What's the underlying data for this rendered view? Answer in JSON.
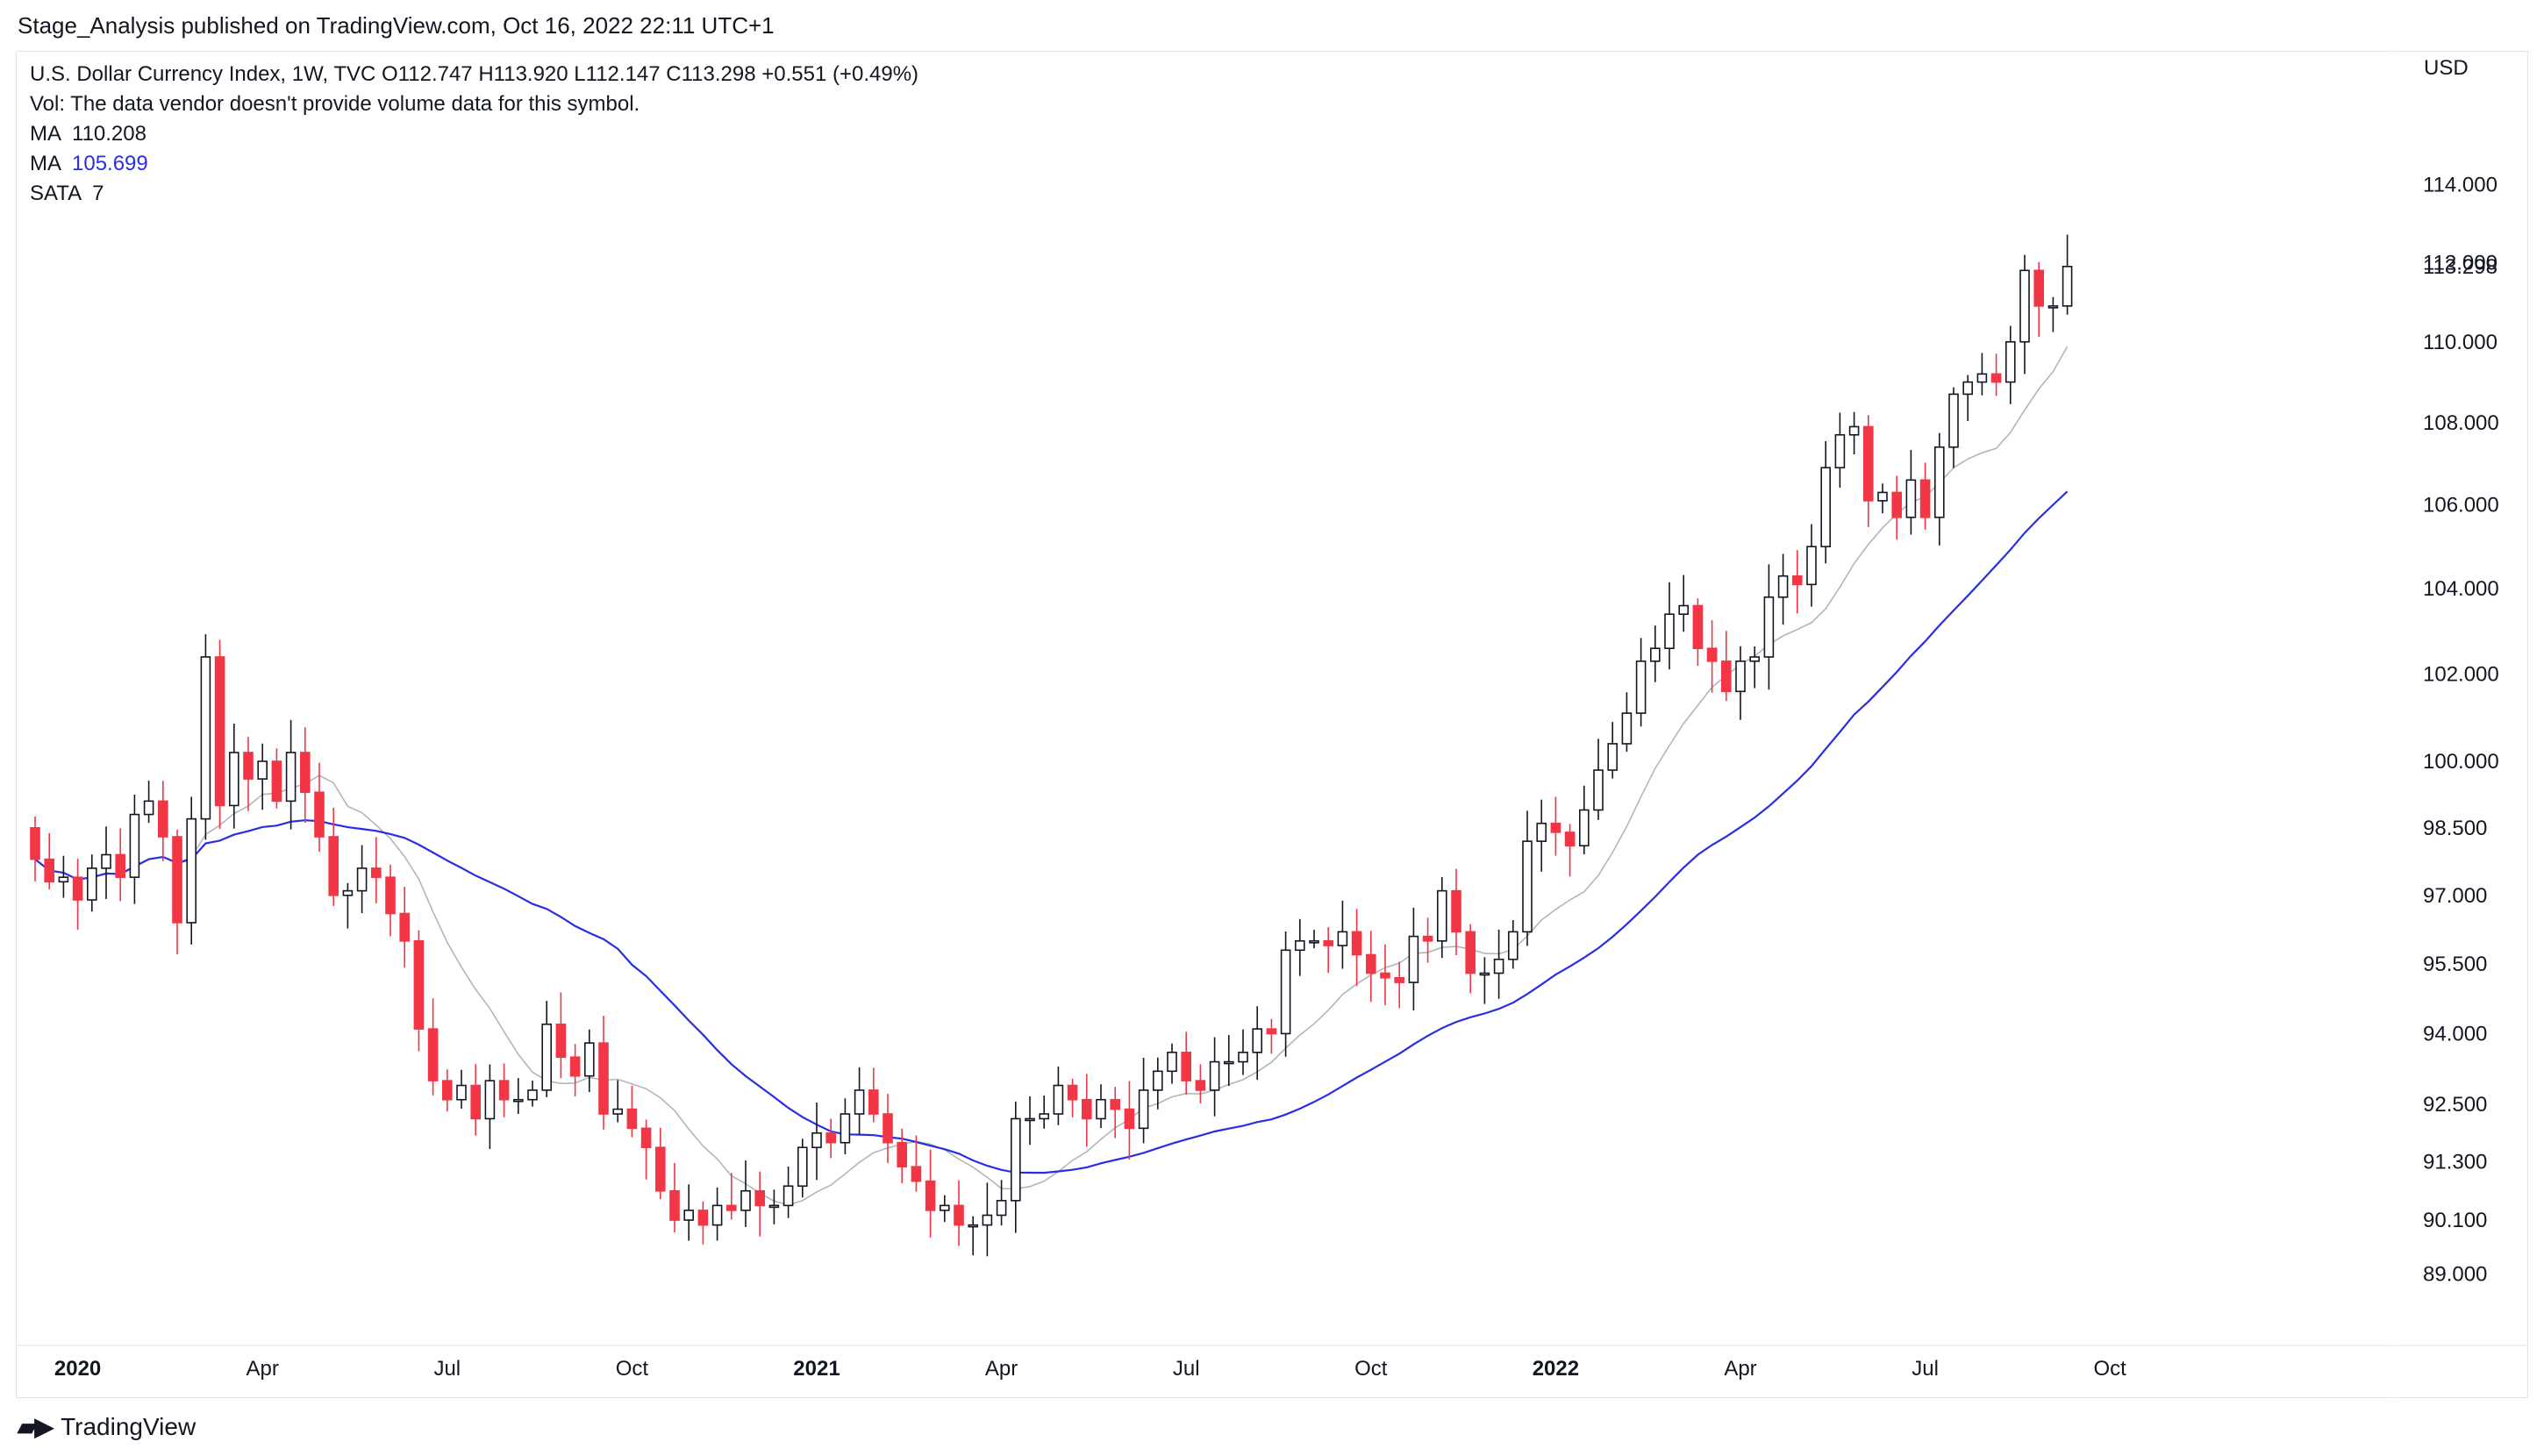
{
  "header": {
    "publisher_line": "Stage_Analysis published on TradingView.com, Oct 16, 2022 22:11 UTC+1"
  },
  "legend": {
    "symbol_line": "U.S. Dollar Currency Index, 1W, TVC  O112.747  H113.920  L112.147  C113.298  +0.551 (+0.49%)",
    "vol_line": "Vol: The data vendor doesn't provide volume data for this symbol.",
    "ma1_label": "MA",
    "ma1_value": "110.208",
    "ma2_label": "MA",
    "ma2_value": "105.699",
    "sata_label": "SATA",
    "sata_value": "7"
  },
  "axis": {
    "currency": "USD",
    "last_price": "113.298"
  },
  "brand": {
    "name": "TradingView"
  },
  "colors": {
    "up": "#131722",
    "down": "#f23645",
    "ma_fast": "#b2b5be",
    "ma_slow": "#2a2ee3"
  },
  "chart_data": {
    "type": "candlestick",
    "interval": "1W",
    "ylim": [
      88.2,
      115.2
    ],
    "y_scale": "log",
    "y_ticks": [
      89.0,
      90.1,
      91.3,
      92.5,
      94.0,
      95.5,
      97.0,
      98.5,
      100.0,
      102.0,
      104.0,
      106.0,
      108.0,
      110.0,
      112.0,
      114.0
    ],
    "y_tick_labels": [
      "89.000",
      "90.100",
      "91.300",
      "92.500",
      "94.000",
      "95.500",
      "97.000",
      "98.500",
      "100.000",
      "102.000",
      "104.000",
      "106.000",
      "108.000",
      "110.000",
      "112.000",
      "114.000"
    ],
    "x_labels": [
      {
        "label": "2020",
        "bar": 3,
        "bold": true
      },
      {
        "label": "Apr",
        "bar": 16
      },
      {
        "label": "Jul",
        "bar": 29
      },
      {
        "label": "Oct",
        "bar": 42
      },
      {
        "label": "2021",
        "bar": 55,
        "bold": true
      },
      {
        "label": "Apr",
        "bar": 68
      },
      {
        "label": "Jul",
        "bar": 81
      },
      {
        "label": "Oct",
        "bar": 94
      },
      {
        "label": "2022",
        "bar": 107,
        "bold": true
      },
      {
        "label": "Apr",
        "bar": 120
      },
      {
        "label": "Jul",
        "bar": 133
      },
      {
        "label": "Oct",
        "bar": 146
      }
    ],
    "closes": [
      97.8,
      97.3,
      97.4,
      96.9,
      97.6,
      97.9,
      97.4,
      98.8,
      99.1,
      98.3,
      96.4,
      98.7,
      102.4,
      99.0,
      100.2,
      99.6,
      100.0,
      99.1,
      100.2,
      99.3,
      98.3,
      97.0,
      97.1,
      97.6,
      97.4,
      96.6,
      96.0,
      94.1,
      93.0,
      92.6,
      92.9,
      92.2,
      93.0,
      92.6,
      92.6,
      92.8,
      94.2,
      93.5,
      93.1,
      93.8,
      92.3,
      92.4,
      92.0,
      91.6,
      90.7,
      90.1,
      90.3,
      90.0,
      90.4,
      90.3,
      90.7,
      90.4,
      90.4,
      90.8,
      91.6,
      91.9,
      91.7,
      92.3,
      92.8,
      92.3,
      91.7,
      91.2,
      90.9,
      90.3,
      90.4,
      90.0,
      90.0,
      90.2,
      90.5,
      92.2,
      92.2,
      92.3,
      92.9,
      92.6,
      92.2,
      92.6,
      92.4,
      92.0,
      92.8,
      93.2,
      93.6,
      93.0,
      92.8,
      93.4,
      93.4,
      93.6,
      94.1,
      94.0,
      95.8,
      96.0,
      96.0,
      95.9,
      96.2,
      95.7,
      95.3,
      95.2,
      95.1,
      96.1,
      96.0,
      97.1,
      96.2,
      95.3,
      95.3,
      95.6,
      96.2,
      98.2,
      98.6,
      98.4,
      98.1,
      98.9,
      99.8,
      100.4,
      101.1,
      102.3,
      102.6,
      103.4,
      103.6,
      102.6,
      102.3,
      101.6,
      102.3,
      102.4,
      103.8,
      104.3,
      104.1,
      105.0,
      106.9,
      107.7,
      107.9,
      106.1,
      106.3,
      105.7,
      106.6,
      105.7,
      107.4,
      108.7,
      109.0,
      109.2,
      109.0,
      110.0,
      111.8,
      110.9,
      110.9,
      111.9
    ],
    "series": [
      {
        "name": "MA",
        "value_label": "110.208",
        "color": "#b2b5be",
        "period": 10
      },
      {
        "name": "MA",
        "value_label": "105.699",
        "color": "#2a2ee3",
        "period": 30
      }
    ]
  }
}
